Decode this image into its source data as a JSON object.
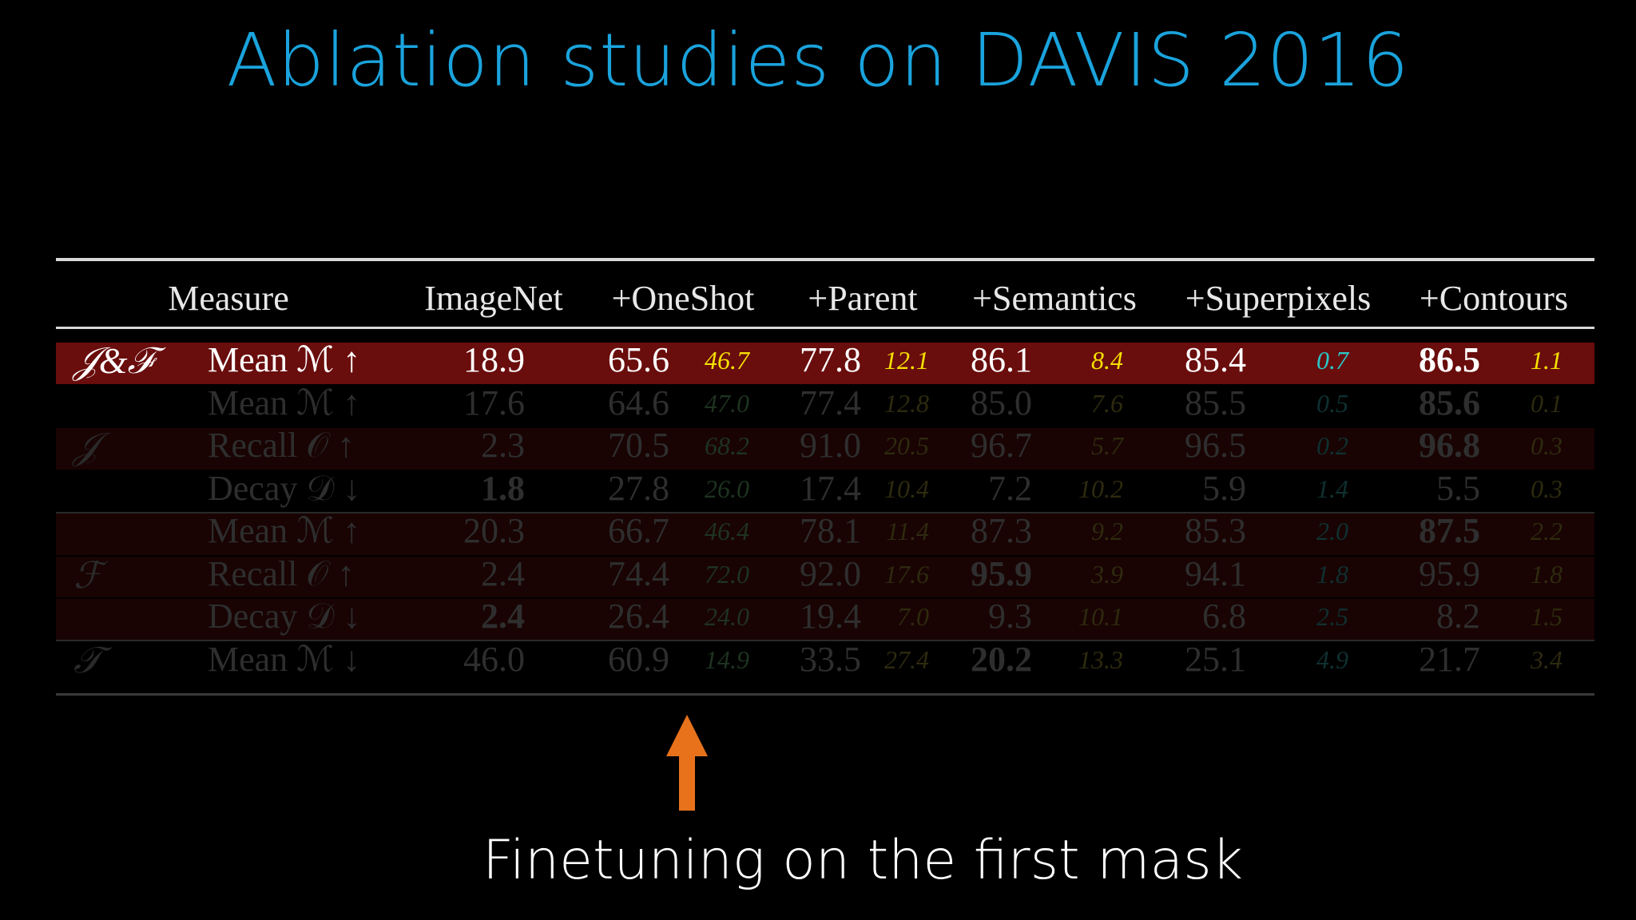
{
  "title": "Ablation studies on DAVIS 2016",
  "caption": "Finetuning on the first mask",
  "colors": {
    "title": "#1aa3dc",
    "highlight_row": "#6a0d0d",
    "delta_yellow": "#f5e000",
    "delta_cyan": "#2bc7c7",
    "arrow": "#e8721c"
  },
  "table": {
    "headers": [
      "Measure",
      "ImageNet",
      "+OneShot",
      "+Parent",
      "+Semantics",
      "+Superpixels",
      "+Contours"
    ],
    "rows": [
      {
        "group": "𝒥&ℱ",
        "metric": "Mean ℳ ↑",
        "values": [
          "18.9",
          "65.6",
          "77.8",
          "86.1",
          "85.4",
          "86.5"
        ],
        "deltas": [
          "46.7",
          "12.1",
          "8.4",
          "0.7",
          "1.1"
        ],
        "bold": [
          false,
          false,
          false,
          false,
          false,
          true
        ]
      },
      {
        "group": "",
        "metric": "Mean ℳ ↑",
        "values": [
          "17.6",
          "64.6",
          "77.4",
          "85.0",
          "85.5",
          "85.6"
        ],
        "deltas": [
          "47.0",
          "12.8",
          "7.6",
          "0.5",
          "0.1"
        ],
        "bold": [
          false,
          false,
          false,
          false,
          false,
          true
        ]
      },
      {
        "group": "𝒥",
        "metric": "Recall 𝒪 ↑",
        "values": [
          "2.3",
          "70.5",
          "91.0",
          "96.7",
          "96.5",
          "96.8"
        ],
        "deltas": [
          "68.2",
          "20.5",
          "5.7",
          "0.2",
          "0.3"
        ],
        "bold": [
          false,
          false,
          false,
          false,
          false,
          true
        ]
      },
      {
        "group": "",
        "metric": "Decay 𝒟 ↓",
        "values": [
          "1.8",
          "27.8",
          "17.4",
          "7.2",
          "5.9",
          "5.5"
        ],
        "deltas": [
          "26.0",
          "10.4",
          "10.2",
          "1.4",
          "0.3"
        ],
        "bold": [
          true,
          false,
          false,
          false,
          false,
          false
        ]
      },
      {
        "group": "",
        "metric": "Mean ℳ ↑",
        "values": [
          "20.3",
          "66.7",
          "78.1",
          "87.3",
          "85.3",
          "87.5"
        ],
        "deltas": [
          "46.4",
          "11.4",
          "9.2",
          "2.0",
          "2.2"
        ],
        "bold": [
          false,
          false,
          false,
          false,
          false,
          true
        ]
      },
      {
        "group": "ℱ",
        "metric": "Recall 𝒪 ↑",
        "values": [
          "2.4",
          "74.4",
          "92.0",
          "95.9",
          "94.1",
          "95.9"
        ],
        "deltas": [
          "72.0",
          "17.6",
          "3.9",
          "1.8",
          "1.8"
        ],
        "bold": [
          false,
          false,
          false,
          true,
          false,
          false
        ]
      },
      {
        "group": "",
        "metric": "Decay 𝒟 ↓",
        "values": [
          "2.4",
          "26.4",
          "19.4",
          "9.3",
          "6.8",
          "8.2"
        ],
        "deltas": [
          "24.0",
          "7.0",
          "10.1",
          "2.5",
          "1.5"
        ],
        "bold": [
          true,
          false,
          false,
          false,
          false,
          false
        ]
      },
      {
        "group": "𝒯",
        "metric": "Mean ℳ ↓",
        "values": [
          "46.0",
          "60.9",
          "33.5",
          "20.2",
          "25.1",
          "21.7"
        ],
        "deltas": [
          "14.9",
          "27.4",
          "13.3",
          "4.9",
          "3.4"
        ],
        "bold": [
          false,
          false,
          false,
          true,
          false,
          false
        ]
      }
    ]
  }
}
